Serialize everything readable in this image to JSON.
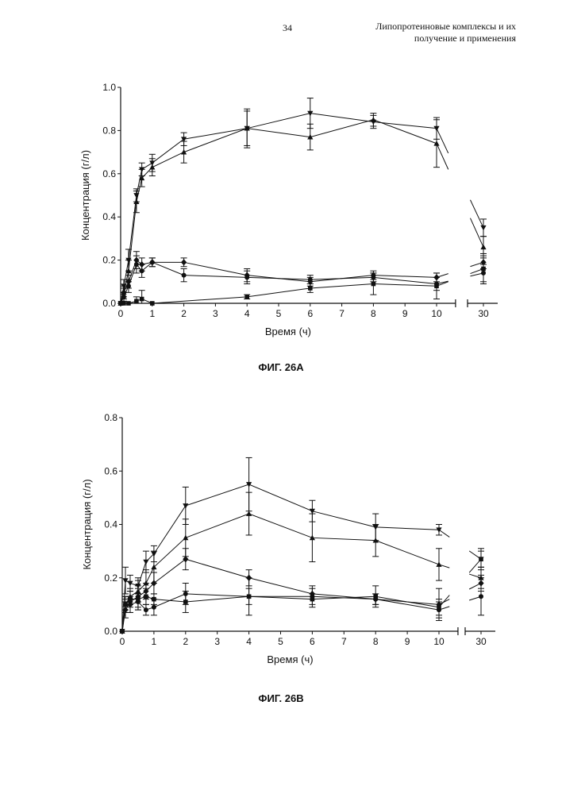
{
  "header": {
    "page_number": "34",
    "title_line1": "Липопротеиновые комплексы и их",
    "title_line2": "получение и применения"
  },
  "figures": [
    {
      "caption": "ФИГ. 26А",
      "xlabel": "Время (ч)",
      "ylabel": "Концентрация (г/л)",
      "y_ticks": [
        "0.0",
        "0.2",
        "0.4",
        "0.6",
        "0.8",
        "1.0"
      ],
      "x_ticks": [
        "0",
        "1",
        "2",
        "3",
        "4",
        "5",
        "6",
        "7",
        "8",
        "9",
        "10"
      ],
      "x_break_tick": "30"
    },
    {
      "caption": "ФИГ. 26В",
      "xlabel": "Время (ч)",
      "ylabel": "Концентрация (г/л)",
      "y_ticks": [
        "0.0",
        "0.2",
        "0.4",
        "0.6",
        "0.8"
      ],
      "x_ticks": [
        "0",
        "1",
        "2",
        "3",
        "4",
        "5",
        "6",
        "7",
        "8",
        "9",
        "10"
      ],
      "x_break_tick": "30"
    }
  ],
  "chart_data": [
    {
      "type": "line",
      "xlabel": "Время (ч)",
      "ylabel": "Концентрация (г/л)",
      "ylim": [
        0,
        1.0
      ],
      "x_axis_break": [
        10.5,
        29.5
      ],
      "series": [
        {
          "marker": "triangle-down",
          "x": [
            0,
            0.1,
            0.25,
            0.5,
            0.67,
            1,
            2,
            4,
            6,
            8,
            10,
            30
          ],
          "y": [
            0.0,
            0.08,
            0.2,
            0.5,
            0.62,
            0.65,
            0.76,
            0.81,
            0.88,
            0.84,
            0.81,
            0.35
          ],
          "err": [
            0,
            0.03,
            0.05,
            0.03,
            0.03,
            0.04,
            0.03,
            0.08,
            0.07,
            0.03,
            0.05,
            0.04
          ]
        },
        {
          "marker": "triangle-up",
          "x": [
            0,
            0.1,
            0.25,
            0.5,
            0.67,
            1,
            2,
            4,
            6,
            8,
            10,
            30
          ],
          "y": [
            0.0,
            0.05,
            0.15,
            0.47,
            0.58,
            0.63,
            0.7,
            0.81,
            0.77,
            0.85,
            0.74,
            0.26
          ],
          "err": [
            0,
            0.03,
            0.05,
            0.05,
            0.04,
            0.04,
            0.05,
            0.09,
            0.06,
            0.03,
            0.11,
            0.05
          ]
        },
        {
          "marker": "diamond",
          "x": [
            0,
            0.1,
            0.25,
            0.5,
            0.67,
            1,
            2,
            4,
            6,
            8,
            10,
            30
          ],
          "y": [
            0.0,
            0.05,
            0.1,
            0.2,
            0.18,
            0.19,
            0.19,
            0.13,
            0.1,
            0.13,
            0.12,
            0.19
          ],
          "err": [
            0,
            0.02,
            0.03,
            0.04,
            0.03,
            0.02,
            0.02,
            0.03,
            0.02,
            0.02,
            0.02,
            0.03
          ]
        },
        {
          "marker": "circle",
          "x": [
            0,
            0.1,
            0.25,
            0.5,
            0.67,
            1,
            2,
            4,
            6,
            8,
            10,
            30
          ],
          "y": [
            0.0,
            0.03,
            0.08,
            0.18,
            0.15,
            0.19,
            0.13,
            0.12,
            0.11,
            0.12,
            0.09,
            0.14
          ],
          "err": [
            0,
            0.02,
            0.03,
            0.04,
            0.03,
            0.02,
            0.03,
            0.03,
            0.02,
            0.02,
            0.03,
            0.04
          ]
        },
        {
          "marker": "square",
          "x": [
            0,
            0.1,
            0.25,
            0.5,
            0.67,
            1,
            4,
            6,
            8,
            10,
            30
          ],
          "y": [
            0.0,
            0.0,
            0.0,
            0.01,
            0.02,
            0.0,
            0.03,
            0.07,
            0.09,
            0.08,
            0.16
          ],
          "err": [
            0,
            0,
            0,
            0.02,
            0.04,
            0,
            0.01,
            0.02,
            0.05,
            0.06,
            0.07
          ]
        }
      ]
    },
    {
      "type": "line",
      "xlabel": "Время (ч)",
      "ylabel": "Концентрация (г/л)",
      "ylim": [
        0,
        0.8
      ],
      "x_axis_break": [
        10.5,
        29.5
      ],
      "series": [
        {
          "marker": "triangle-down",
          "x": [
            0,
            0.1,
            0.25,
            0.5,
            0.75,
            1,
            2,
            4,
            6,
            8,
            10,
            30
          ],
          "y": [
            0.0,
            0.19,
            0.18,
            0.17,
            0.26,
            0.29,
            0.47,
            0.55,
            0.45,
            0.39,
            0.38,
            0.27
          ],
          "err": [
            0,
            0.05,
            0.03,
            0.03,
            0.04,
            0.03,
            0.07,
            0.1,
            0.04,
            0.05,
            0.02,
            0.04
          ]
        },
        {
          "marker": "triangle-up",
          "x": [
            0,
            0.1,
            0.25,
            0.5,
            0.75,
            1,
            2,
            4,
            6,
            8,
            10,
            30
          ],
          "y": [
            0.0,
            0.1,
            0.13,
            0.15,
            0.18,
            0.24,
            0.35,
            0.44,
            0.35,
            0.34,
            0.25,
            0.2
          ],
          "err": [
            0,
            0.03,
            0.03,
            0.04,
            0.05,
            0.06,
            0.07,
            0.08,
            0.09,
            0.06,
            0.06,
            0.04
          ]
        },
        {
          "marker": "diamond",
          "x": [
            0,
            0.1,
            0.25,
            0.5,
            0.75,
            1,
            2,
            4,
            6,
            8,
            10,
            30
          ],
          "y": [
            0.0,
            0.08,
            0.11,
            0.13,
            0.15,
            0.18,
            0.27,
            0.2,
            0.14,
            0.12,
            0.1,
            0.18
          ],
          "err": [
            0,
            0.03,
            0.04,
            0.04,
            0.03,
            0.04,
            0.04,
            0.03,
            0.02,
            0.02,
            0.06,
            0.03
          ]
        },
        {
          "marker": "circle",
          "x": [
            0,
            0.1,
            0.25,
            0.5,
            0.75,
            1,
            2,
            4,
            6,
            8,
            10,
            30
          ],
          "y": [
            0.0,
            0.1,
            0.1,
            0.11,
            0.08,
            0.09,
            0.14,
            0.13,
            0.13,
            0.12,
            0.08,
            0.13
          ],
          "err": [
            0,
            0.02,
            0.03,
            0.03,
            0.02,
            0.03,
            0.04,
            0.07,
            0.04,
            0.02,
            0.03,
            0.07
          ]
        },
        {
          "marker": "square",
          "x": [
            0,
            0.1,
            0.25,
            0.5,
            0.75,
            1,
            2,
            4,
            6,
            8,
            10,
            30
          ],
          "y": [
            0.0,
            0.1,
            0.12,
            0.12,
            0.13,
            0.12,
            0.11,
            0.13,
            0.12,
            0.13,
            0.09,
            0.27
          ],
          "err": [
            0,
            0.03,
            0.03,
            0.04,
            0.03,
            0.02,
            0.04,
            0.03,
            0.02,
            0.04,
            0.03,
            0.03
          ]
        }
      ]
    }
  ]
}
